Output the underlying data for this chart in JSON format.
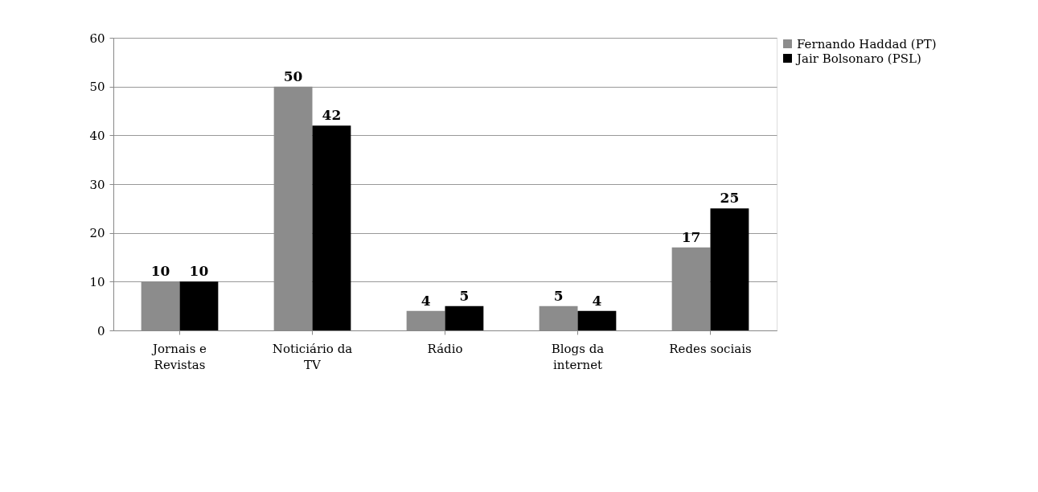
{
  "chart_data": {
    "type": "bar",
    "categories": [
      "Jornais e Revistas",
      "Noticiário da TV",
      "Rádio",
      "Blogs da internet",
      "Redes sociais"
    ],
    "series": [
      {
        "name": "Fernando Haddad (PT)",
        "color": "#8c8c8c",
        "values": [
          10,
          50,
          4,
          5,
          17
        ]
      },
      {
        "name": "Jair Bolsonaro (PSL)",
        "color": "#000000",
        "values": [
          10,
          42,
          5,
          4,
          25
        ]
      }
    ],
    "ylim": [
      0,
      60
    ],
    "yticks": [
      0,
      10,
      20,
      30,
      40,
      50,
      60
    ],
    "grid": "y",
    "legend": "right",
    "data_labels": true
  }
}
